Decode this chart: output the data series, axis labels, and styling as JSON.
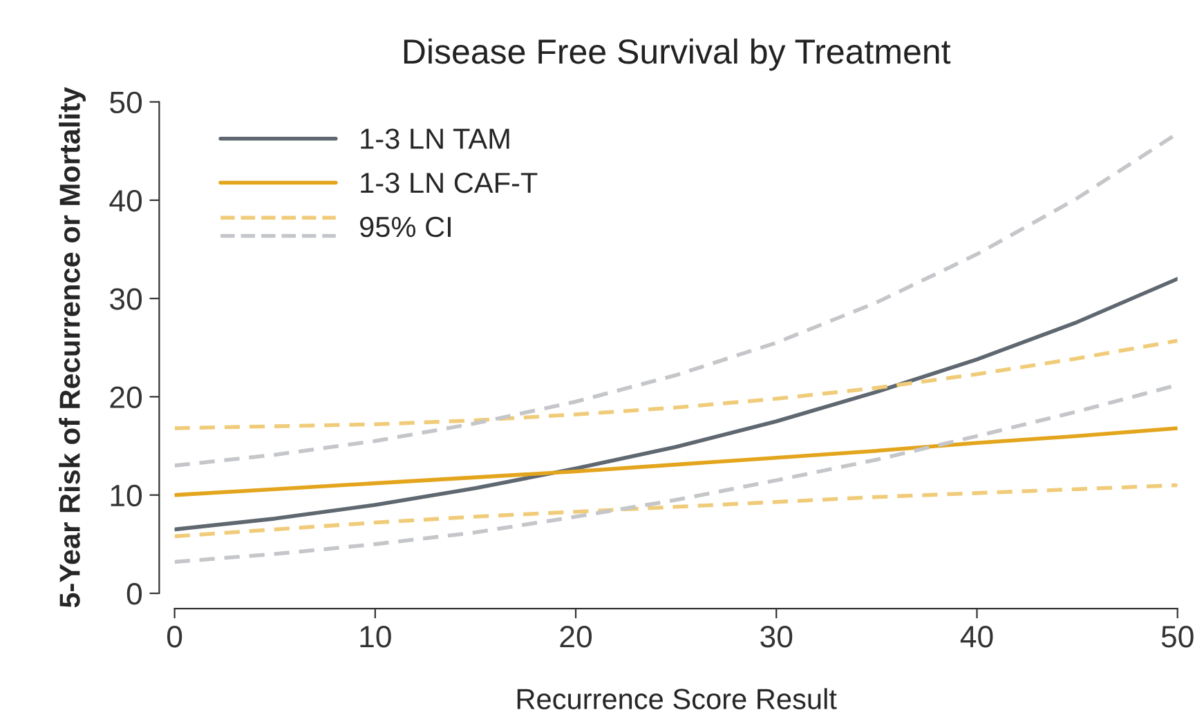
{
  "chart_data": {
    "type": "line",
    "title": "Disease Free Survival by Treatment",
    "xlabel": "Recurrence Score Result",
    "ylabel": "5-Year Risk of Recurrence or Mortality",
    "x": [
      0,
      5,
      10,
      15,
      20,
      25,
      30,
      35,
      40,
      45,
      50
    ],
    "series": [
      {
        "name": "1-3 LN TAM",
        "color": "#5f6770",
        "line_style": "solid",
        "values": [
          6.5,
          7.6,
          9,
          10.7,
          12.7,
          14.9,
          17.5,
          20.5,
          23.8,
          27.6,
          32
        ]
      },
      {
        "name": "1-3 LN CAF-T",
        "color": "#e3a51d",
        "line_style": "solid",
        "values": [
          10,
          10.6,
          11.2,
          11.8,
          12.4,
          13.1,
          13.8,
          14.5,
          15.3,
          16,
          16.8
        ]
      },
      {
        "name": "95% CI",
        "color": "#f0cc7a",
        "line_style": "dashed",
        "values": [
          16.8,
          17,
          17.2,
          17.6,
          18.2,
          18.9,
          19.8,
          20.9,
          22.3,
          23.9,
          25.7
        ]
      },
      {
        "color": "#f0cc7a",
        "line_style": "dashed",
        "values": [
          5.8,
          6.5,
          7.2,
          7.8,
          8.3,
          8.8,
          9.3,
          9.8,
          10.2,
          10.6,
          11
        ]
      },
      {
        "color": "#c4c6ca",
        "line_style": "dashed",
        "values": [
          13,
          14.1,
          15.5,
          17.3,
          19.5,
          22.2,
          25.5,
          29.6,
          34.5,
          40.2,
          46.8
        ]
      },
      {
        "color": "#c4c6ca",
        "line_style": "dashed",
        "values": [
          3.2,
          4,
          5,
          6.2,
          7.8,
          9.5,
          11.5,
          13.6,
          16,
          18.5,
          21.2
        ]
      }
    ],
    "xlim": [
      0,
      50
    ],
    "xticks": [
      0,
      10,
      20,
      30,
      40,
      50
    ],
    "ylim": [
      0,
      50
    ],
    "yticks": [
      0,
      10,
      20,
      30,
      40,
      50
    ],
    "grid": false,
    "legend": "top left",
    "marker": "none"
  }
}
